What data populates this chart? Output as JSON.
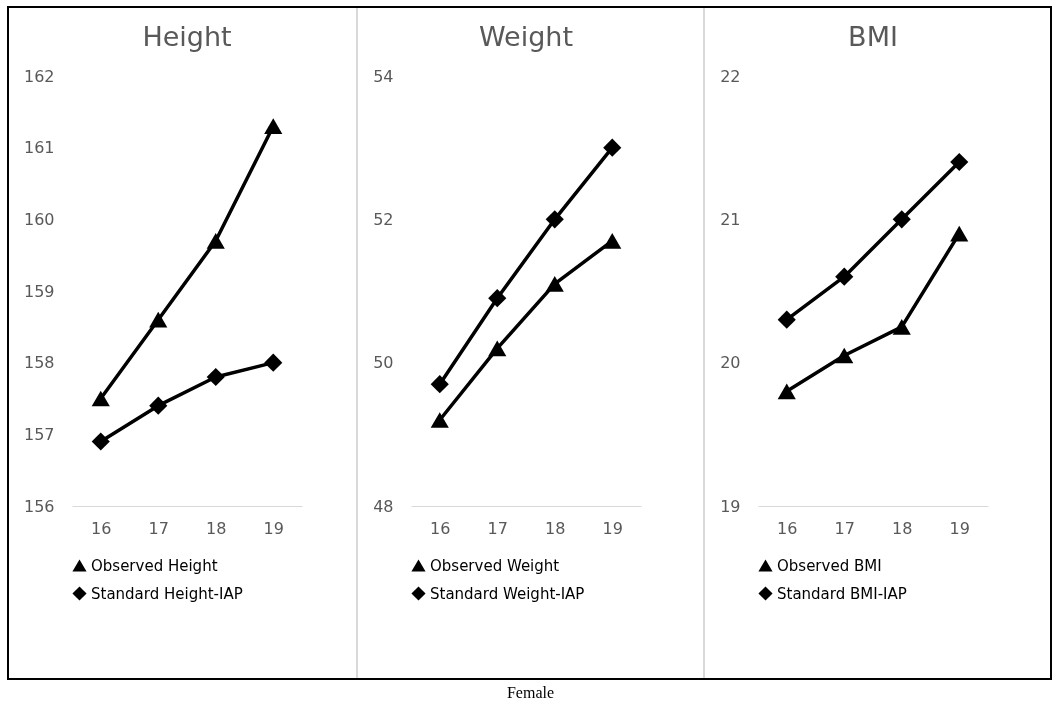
{
  "chart_data": [
    {
      "type": "line",
      "title": "Height",
      "categories": [
        "16",
        "17",
        "18",
        "19"
      ],
      "ylim": [
        156,
        162
      ],
      "yticks": [
        156,
        157,
        158,
        159,
        160,
        161,
        162
      ],
      "grid": false,
      "legend": "bottom",
      "line_style": "solid",
      "series": [
        {
          "name": "Observed Height",
          "color": "#000000",
          "marker": "triangle",
          "values": [
            157.5,
            158.6,
            159.7,
            161.3
          ]
        },
        {
          "name": "Standard Height-IAP",
          "color": "#000000",
          "marker": "diamond",
          "values": [
            156.9,
            157.4,
            157.8,
            158.0
          ]
        }
      ]
    },
    {
      "type": "line",
      "title": "Weight",
      "categories": [
        "16",
        "17",
        "18",
        "19"
      ],
      "ylim": [
        48,
        54
      ],
      "yticks": [
        48,
        50,
        52,
        54
      ],
      "grid": false,
      "legend": "bottom",
      "line_style": "solid",
      "annotations": [
        "Female"
      ],
      "series": [
        {
          "name": "Observed Weight",
          "color": "#000000",
          "marker": "triangle",
          "values": [
            49.2,
            50.2,
            51.1,
            51.7
          ]
        },
        {
          "name": "Standard Weight-IAP",
          "color": "#000000",
          "marker": "diamond",
          "values": [
            49.7,
            50.9,
            52.0,
            53.0
          ]
        }
      ]
    },
    {
      "type": "line",
      "title": "BMI",
      "categories": [
        "16",
        "17",
        "18",
        "19"
      ],
      "ylim": [
        19,
        22
      ],
      "yticks": [
        19,
        20,
        21,
        22
      ],
      "grid": false,
      "legend": "bottom",
      "line_style": "solid",
      "series": [
        {
          "name": "Observed BMI",
          "color": "#000000",
          "marker": "triangle",
          "values": [
            19.8,
            20.05,
            20.25,
            20.9
          ]
        },
        {
          "name": "Standard BMI-IAP",
          "color": "#000000",
          "marker": "diamond",
          "values": [
            20.3,
            20.6,
            21.0,
            21.4
          ]
        }
      ]
    }
  ]
}
